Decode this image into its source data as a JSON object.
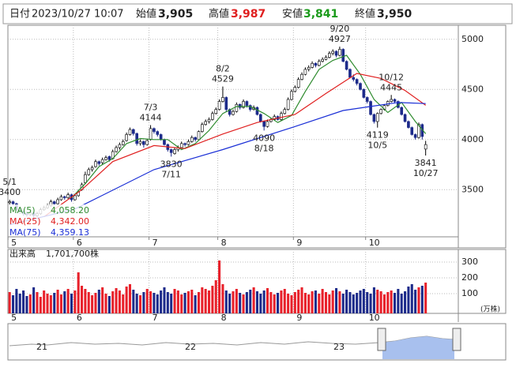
{
  "header": {
    "items": [
      {
        "label": "日付",
        "value": "2023/10/27 10:07"
      },
      {
        "label": "始値",
        "value": "3,905"
      },
      {
        "label": "高値",
        "value": "3,987"
      },
      {
        "label": "安値",
        "value": "3,841"
      },
      {
        "label": "終値",
        "value": "3,950"
      }
    ]
  },
  "chart_data": {
    "type": "candlestick",
    "ylim": [
      3030,
      5140
    ],
    "yticks": [
      3500,
      4000,
      4500,
      5000
    ],
    "grid": true,
    "xlim": [
      -0.5,
      130.5
    ],
    "xticks": [
      {
        "value": 0,
        "label": "5"
      },
      {
        "value": 19,
        "label": "6"
      },
      {
        "value": 41,
        "label": "7"
      },
      {
        "value": 61,
        "label": "8"
      },
      {
        "value": 83,
        "label": "9"
      },
      {
        "value": 104,
        "label": "10"
      }
    ],
    "up_color": "#ffffff",
    "down_color": "#1c2a8a",
    "candles": [
      [
        3370,
        3400,
        3350,
        3380
      ],
      [
        3380,
        3390,
        3340,
        3360
      ],
      [
        3360,
        3370,
        3290,
        3300
      ],
      [
        3300,
        3320,
        3260,
        3280
      ],
      [
        3280,
        3290,
        3240,
        3260
      ],
      [
        3260,
        3280,
        3230,
        3250
      ],
      [
        3250,
        3290,
        3240,
        3270
      ],
      [
        3270,
        3280,
        3220,
        3240
      ],
      [
        3240,
        3280,
        3230,
        3260
      ],
      [
        3260,
        3320,
        3250,
        3300
      ],
      [
        3300,
        3340,
        3290,
        3320
      ],
      [
        3320,
        3360,
        3310,
        3340
      ],
      [
        3340,
        3400,
        3330,
        3380
      ],
      [
        3380,
        3390,
        3340,
        3360
      ],
      [
        3360,
        3420,
        3350,
        3400
      ],
      [
        3400,
        3450,
        3390,
        3430
      ],
      [
        3430,
        3440,
        3400,
        3420
      ],
      [
        3420,
        3470,
        3410,
        3450
      ],
      [
        3450,
        3460,
        3380,
        3400
      ],
      [
        3400,
        3460,
        3390,
        3440
      ],
      [
        3440,
        3500,
        3430,
        3480
      ],
      [
        3500,
        3570,
        3490,
        3550
      ],
      [
        3570,
        3680,
        3560,
        3650
      ],
      [
        3650,
        3720,
        3640,
        3700
      ],
      [
        3700,
        3740,
        3680,
        3720
      ],
      [
        3730,
        3800,
        3720,
        3780
      ],
      [
        3780,
        3790,
        3740,
        3760
      ],
      [
        3770,
        3820,
        3750,
        3800
      ],
      [
        3800,
        3840,
        3790,
        3820
      ],
      [
        3830,
        3840,
        3780,
        3800
      ],
      [
        3810,
        3900,
        3800,
        3880
      ],
      [
        3880,
        3940,
        3870,
        3920
      ],
      [
        3920,
        3970,
        3900,
        3950
      ],
      [
        3950,
        4000,
        3940,
        3980
      ],
      [
        3990,
        4070,
        3980,
        4050
      ],
      [
        4050,
        4120,
        4040,
        4100
      ],
      [
        4100,
        4110,
        4040,
        4060
      ],
      [
        4060,
        4070,
        3940,
        3960
      ],
      [
        3960,
        4000,
        3940,
        3980
      ],
      [
        3980,
        3990,
        3920,
        3950
      ],
      [
        3950,
        4010,
        3940,
        3990
      ],
      [
        4000,
        4144,
        3990,
        4110
      ],
      [
        4110,
        4120,
        4060,
        4080
      ],
      [
        4080,
        4090,
        4030,
        4050
      ],
      [
        4050,
        4060,
        3990,
        4000
      ],
      [
        4000,
        4010,
        3940,
        3950
      ],
      [
        3950,
        3960,
        3880,
        3900
      ],
      [
        3900,
        3910,
        3830,
        3870
      ],
      [
        3860,
        3920,
        3850,
        3900
      ],
      [
        3900,
        3940,
        3880,
        3920
      ],
      [
        3920,
        3980,
        3910,
        3960
      ],
      [
        3960,
        3970,
        3930,
        3950
      ],
      [
        3950,
        4000,
        3940,
        3980
      ],
      [
        3980,
        4040,
        3970,
        4020
      ],
      [
        4020,
        4030,
        3980,
        4000
      ],
      [
        4000,
        4090,
        3990,
        4080
      ],
      [
        4080,
        4170,
        4070,
        4150
      ],
      [
        4150,
        4200,
        4140,
        4180
      ],
      [
        4180,
        4220,
        4160,
        4200
      ],
      [
        4200,
        4280,
        4190,
        4260
      ],
      [
        4260,
        4320,
        4250,
        4300
      ],
      [
        4300,
        4400,
        4290,
        4380
      ],
      [
        4380,
        4529,
        4370,
        4420
      ],
      [
        4420,
        4430,
        4280,
        4300
      ],
      [
        4300,
        4310,
        4230,
        4250
      ],
      [
        4250,
        4300,
        4240,
        4280
      ],
      [
        4280,
        4370,
        4270,
        4350
      ],
      [
        4350,
        4360,
        4300,
        4320
      ],
      [
        4320,
        4400,
        4310,
        4380
      ],
      [
        4380,
        4390,
        4320,
        4340
      ],
      [
        4340,
        4350,
        4280,
        4300
      ],
      [
        4300,
        4340,
        4290,
        4320
      ],
      [
        4320,
        4330,
        4240,
        4250
      ],
      [
        4250,
        4260,
        4170,
        4180
      ],
      [
        4180,
        4190,
        4090,
        4130
      ],
      [
        4130,
        4200,
        4120,
        4180
      ],
      [
        4180,
        4220,
        4170,
        4200
      ],
      [
        4200,
        4250,
        4190,
        4230
      ],
      [
        4230,
        4240,
        4190,
        4200
      ],
      [
        4200,
        4280,
        4190,
        4260
      ],
      [
        4260,
        4320,
        4250,
        4300
      ],
      [
        4300,
        4420,
        4290,
        4400
      ],
      [
        4400,
        4500,
        4390,
        4480
      ],
      [
        4480,
        4540,
        4470,
        4520
      ],
      [
        4520,
        4620,
        4510,
        4600
      ],
      [
        4600,
        4670,
        4590,
        4650
      ],
      [
        4650,
        4720,
        4640,
        4700
      ],
      [
        4700,
        4740,
        4680,
        4720
      ],
      [
        4720,
        4780,
        4710,
        4760
      ],
      [
        4760,
        4770,
        4720,
        4740
      ],
      [
        4740,
        4800,
        4730,
        4780
      ],
      [
        4780,
        4820,
        4770,
        4800
      ],
      [
        4800,
        4840,
        4790,
        4820
      ],
      [
        4820,
        4880,
        4810,
        4860
      ],
      [
        4860,
        4900,
        4840,
        4880
      ],
      [
        4880,
        4890,
        4820,
        4840
      ],
      [
        4840,
        4927,
        4830,
        4900
      ],
      [
        4900,
        4910,
        4770,
        4780
      ],
      [
        4780,
        4790,
        4690,
        4700
      ],
      [
        4700,
        4710,
        4610,
        4620
      ],
      [
        4620,
        4650,
        4580,
        4600
      ],
      [
        4600,
        4610,
        4540,
        4560
      ],
      [
        4560,
        4570,
        4490,
        4500
      ],
      [
        4500,
        4510,
        4410,
        4420
      ],
      [
        4420,
        4430,
        4360,
        4380
      ],
      [
        4380,
        4390,
        4240,
        4250
      ],
      [
        4250,
        4260,
        4160,
        4180
      ],
      [
        4180,
        4270,
        4119,
        4260
      ],
      [
        4260,
        4310,
        4250,
        4300
      ],
      [
        4300,
        4350,
        4290,
        4340
      ],
      [
        4340,
        4390,
        4330,
        4380
      ],
      [
        4380,
        4445,
        4370,
        4400
      ],
      [
        4400,
        4410,
        4360,
        4380
      ],
      [
        4380,
        4390,
        4310,
        4320
      ],
      [
        4320,
        4330,
        4240,
        4250
      ],
      [
        4250,
        4260,
        4170,
        4180
      ],
      [
        4180,
        4190,
        4110,
        4120
      ],
      [
        4120,
        4130,
        4040,
        4050
      ],
      [
        4050,
        4060,
        4000,
        4020
      ],
      [
        4020,
        4170,
        4010,
        4150
      ],
      [
        4150,
        4160,
        4000,
        4030
      ],
      [
        3905,
        3987,
        3841,
        3950
      ]
    ],
    "series": [
      {
        "name": "MA(5)",
        "color": "#2e8b2e",
        "current": {
          "value": 4058.2,
          "label": "4,058.20"
        },
        "x": [
          18,
          22,
          26,
          30,
          34,
          38,
          42,
          46,
          50,
          54,
          58,
          62,
          66,
          70,
          74,
          78,
          82,
          86,
          90,
          94,
          98,
          102,
          106,
          110,
          114,
          118,
          121
        ],
        "values": [
          3420,
          3560,
          3730,
          3810,
          3960,
          4010,
          4000,
          4000,
          3900,
          3960,
          4090,
          4260,
          4330,
          4330,
          4260,
          4170,
          4240,
          4480,
          4700,
          4790,
          4840,
          4650,
          4400,
          4270,
          4370,
          4180,
          4058
        ]
      },
      {
        "name": "MA(25)",
        "color": "#e02020",
        "current": {
          "value": 4342,
          "label": "4,342.00"
        },
        "x": [
          10,
          21,
          30,
          42,
          51,
          62,
          72,
          83,
          92,
          101,
          108,
          115,
          121
        ],
        "values": [
          3230,
          3500,
          3780,
          3940,
          3910,
          4055,
          4170,
          4250,
          4460,
          4660,
          4610,
          4490,
          4342
        ]
      },
      {
        "name": "MA(75)",
        "color": "#1a2fd6",
        "current": {
          "value": 4359.13,
          "label": "4,359.13"
        },
        "x": [
          0,
          19,
          42,
          62,
          83,
          97,
          105,
          113,
          121
        ],
        "values": [
          3150,
          3307,
          3700,
          3900,
          4130,
          4290,
          4330,
          4370,
          4359
        ]
      }
    ],
    "annotations": [
      {
        "date": "5/1",
        "value": 3400,
        "at": 0,
        "side": "above"
      },
      {
        "date": "7/3",
        "value": 4144,
        "at": 41,
        "side": "above"
      },
      {
        "date": "8/2",
        "value": 4529,
        "at": 62,
        "side": "above"
      },
      {
        "date": "9/20",
        "value": 4927,
        "at": 96,
        "side": "above"
      },
      {
        "date": "10/12",
        "value": 4445,
        "at": 111,
        "side": "above"
      },
      {
        "date": "7/11",
        "value": 3830,
        "at": 47,
        "side": "below"
      },
      {
        "date": "8/18",
        "value": 4090,
        "at": 74,
        "side": "below"
      },
      {
        "date": "10/5",
        "value": 4119,
        "at": 107,
        "side": "below"
      },
      {
        "date": "10/27",
        "value": 3841,
        "at": 121,
        "side": "below"
      }
    ],
    "volume": {
      "title": "出来高",
      "total": "1,701,700株",
      "unit": "(万株)",
      "ylim": [
        0,
        380
      ],
      "yticks": [
        100,
        200,
        300
      ],
      "up_color": "#e8202a",
      "down_color": "#1c2a8a",
      "values": [
        110,
        90,
        130,
        100,
        120,
        85,
        95,
        140,
        110,
        80,
        120,
        100,
        90,
        105,
        125,
        95,
        115,
        130,
        100,
        120,
        235,
        150,
        130,
        110,
        90,
        105,
        125,
        140,
        100,
        85,
        115,
        135,
        120,
        95,
        145,
        160,
        125,
        100,
        90,
        110,
        130,
        115,
        105,
        95,
        120,
        140,
        110,
        100,
        130,
        120,
        95,
        105,
        115,
        125,
        90,
        110,
        140,
        130,
        120,
        150,
        185,
        310,
        160,
        120,
        100,
        115,
        130,
        105,
        95,
        110,
        125,
        140,
        115,
        100,
        120,
        135,
        110,
        95,
        105,
        120,
        130,
        100,
        90,
        110,
        125,
        140,
        105,
        95,
        115,
        120,
        100,
        130,
        110,
        95,
        120,
        135,
        115,
        100,
        125,
        110,
        95,
        105,
        120,
        130,
        110,
        100,
        140,
        125,
        115,
        95,
        110,
        120,
        105,
        130,
        100,
        115,
        145,
        160,
        125,
        140,
        150,
        170
      ]
    },
    "navigator_labels": [
      "21",
      "22",
      "23"
    ]
  }
}
